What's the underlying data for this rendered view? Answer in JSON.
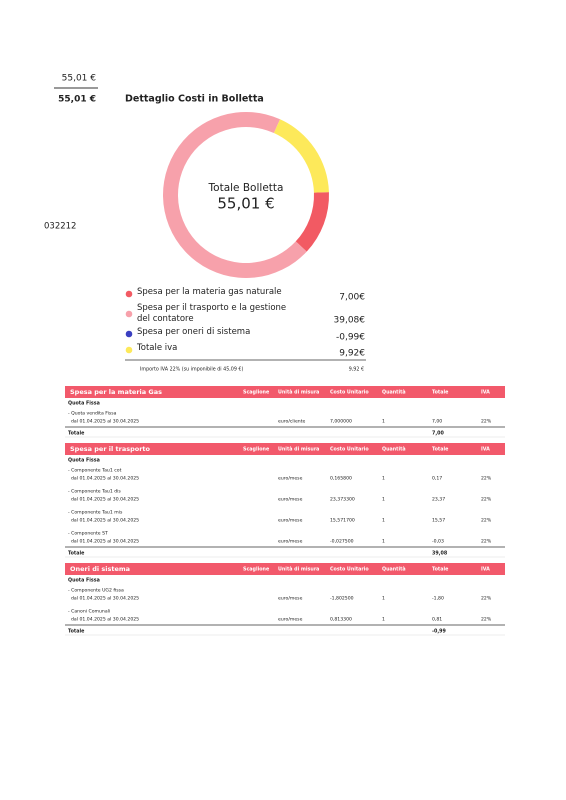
{
  "header": {
    "amount_top": "55,01 €",
    "amount_bold": "55,01 €",
    "title": "Dettaglio Costi in Bolletta",
    "side_code": "032212"
  },
  "chart_data": {
    "type": "donut",
    "center_label": "Totale Bolletta",
    "center_value": "55,01 €",
    "categories": [
      "Spesa per la materia gas naturale",
      "Spesa per il trasporto e la gestione del contatore",
      "Spesa per oneri di sistema",
      "Totale iva"
    ],
    "colors": [
      "#f25a63",
      "#f7a1ab",
      "#3a3fc1",
      "#fde95a"
    ],
    "values": [
      7.0,
      39.08,
      -0.99,
      9.92
    ],
    "value_labels": [
      "7,00€",
      "39,08€",
      "-0,99€",
      "9,92€"
    ]
  },
  "iva_note": {
    "label": "Importo IVA 22% (su imponibile di 45,09 €)",
    "value": "9,92 €"
  },
  "table": {
    "columns": [
      "Scaglione",
      "Unità di misura",
      "Costo Unitario",
      "Quantità",
      "Totale",
      "IVA"
    ],
    "sections": [
      {
        "title": "Spesa per la materia Gas",
        "group": "Quota Fissa",
        "rows": [
          [
            "- Quota vendita Fissa",
            "dal 01.04.2025 al 30.04.2025",
            "euro/cliente",
            "7,000000",
            "1",
            "7,00",
            "22%"
          ]
        ],
        "total_label": "Totale",
        "total": "7,00"
      },
      {
        "title": "Spesa per il trasporto",
        "group": "Quota Fissa",
        "rows": [
          [
            "- Componente Tau1 cot",
            "dal 01.04.2025 al 30.04.2025",
            "euro/mese",
            "0,165800",
            "1",
            "0,17",
            "22%"
          ],
          [
            "- Componente Tau1 dis",
            "dal 01.04.2025 al 30.04.2025",
            "euro/mese",
            "23,373300",
            "1",
            "23,37",
            "22%"
          ],
          [
            "- Componente Tau1 mis",
            "dal 01.04.2025 al 30.04.2025",
            "euro/mese",
            "15,571700",
            "1",
            "15,57",
            "22%"
          ],
          [
            "- Componente ST",
            "dal 01.04.2025 al 30.04.2025",
            "euro/mese",
            "-0,027500",
            "1",
            "-0,03",
            "22%"
          ]
        ],
        "total_label": "Totale",
        "total": "39,08"
      },
      {
        "title": "Oneri di sistema",
        "group": "Quota Fissa",
        "rows": [
          [
            "- Componente UG2 fissa",
            "dal 01.04.2025 al 30.04.2025",
            "euro/mese",
            "-1,802500",
            "1",
            "-1,80",
            "22%"
          ],
          [
            "- Canoni Comunali",
            "dal 01.04.2025 al 30.04.2025",
            "euro/mese",
            "0,813300",
            "1",
            "0,81",
            "22%"
          ]
        ],
        "total_label": "Totale",
        "total": "-0,99"
      }
    ]
  }
}
